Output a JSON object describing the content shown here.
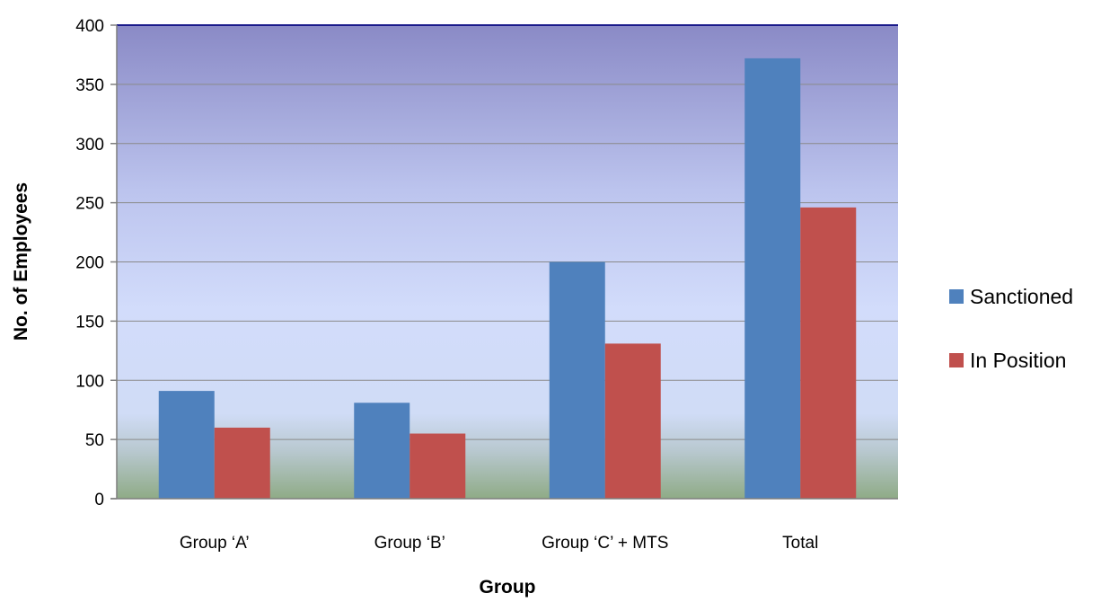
{
  "chart_data": {
    "type": "bar",
    "title": "",
    "xlabel": "Group",
    "ylabel": "No. of Employees",
    "categories": [
      "Group ‘A’",
      "Group ‘B’",
      "Group ‘C’ + MTS",
      "Total"
    ],
    "series": [
      {
        "name": "Sanctioned",
        "color": "#4F81BD",
        "values": [
          91,
          81,
          200,
          372
        ]
      },
      {
        "name": "In Position",
        "color": "#C0504D",
        "values": [
          60,
          55,
          131,
          246
        ]
      }
    ],
    "ylim": [
      0,
      400
    ],
    "yticks": [
      "0",
      "50",
      "100",
      "150",
      "200",
      "250",
      "300",
      "350",
      "400"
    ],
    "grid": true,
    "legend_position": "right",
    "plot_background": "gradient purple-blue to green"
  }
}
